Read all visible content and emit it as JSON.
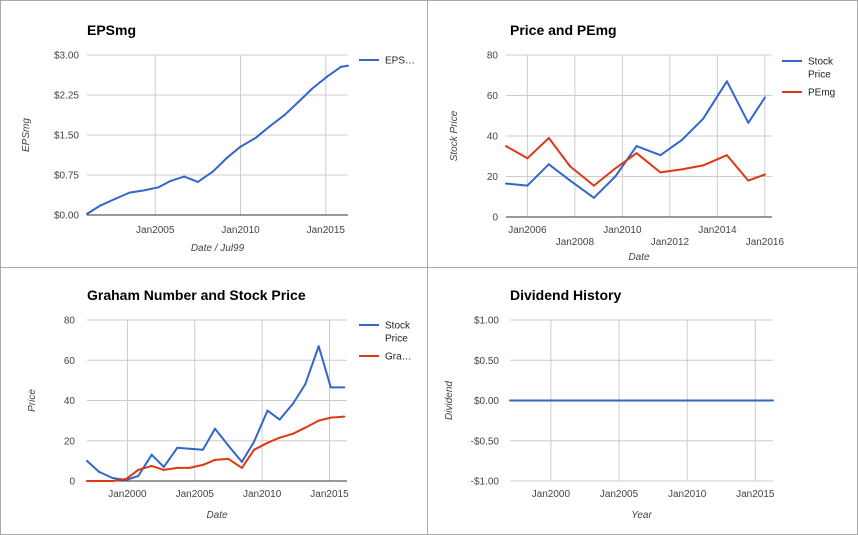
{
  "chart_data": [
    {
      "type": "line",
      "title": "EPSmg",
      "xlabel": "Date / Jul99",
      "ylabel": "EPSmg",
      "ylim": [
        0,
        3
      ],
      "xlim": [
        2001,
        2016.3
      ],
      "yticks": [
        "$0.00",
        "$0.75",
        "$1.50",
        "$2.25",
        "$3.00"
      ],
      "ytick_values": [
        0,
        0.75,
        1.5,
        2.25,
        3
      ],
      "xticks": [
        "Jan2005",
        "Jan2010",
        "Jan2015"
      ],
      "xtick_values": [
        2005,
        2010,
        2015
      ],
      "grid": true,
      "legend_position": "right",
      "series": [
        {
          "name": "EPS…",
          "color": "#3366cc",
          "x": [
            2001.0,
            2001.8,
            2002.7,
            2003.5,
            2004.3,
            2005.2,
            2005.9,
            2006.7,
            2007.5,
            2008.4,
            2009.2,
            2010.0,
            2010.9,
            2011.7,
            2012.6,
            2013.4,
            2014.2,
            2015.1,
            2015.9,
            2016.3
          ],
          "y": [
            0.02,
            0.18,
            0.31,
            0.42,
            0.46,
            0.52,
            0.64,
            0.72,
            0.62,
            0.82,
            1.07,
            1.28,
            1.45,
            1.66,
            1.88,
            2.12,
            2.37,
            2.6,
            2.78,
            2.8
          ]
        }
      ]
    },
    {
      "type": "line",
      "title": "Price and PEmg",
      "xlabel": "Date",
      "ylabel": "Stock Price",
      "ylim": [
        0,
        80
      ],
      "xlim": [
        2005.1,
        2016.3
      ],
      "yticks": [
        "0",
        "20",
        "40",
        "60",
        "80"
      ],
      "ytick_values": [
        0,
        20,
        40,
        60,
        80
      ],
      "xticks": [
        "Jan2006",
        "Jan2008",
        "Jan2010",
        "Jan2012",
        "Jan2014",
        "Jan2016"
      ],
      "xtick_values": [
        2006,
        2008,
        2010,
        2012,
        2014,
        2016
      ],
      "grid": true,
      "legend_position": "right",
      "series": [
        {
          "name": "Stock Price",
          "color": "#3366cc",
          "x": [
            2005.1,
            2006.0,
            2006.9,
            2007.8,
            2008.8,
            2009.7,
            2010.6,
            2011.6,
            2012.5,
            2013.4,
            2014.4,
            2015.3,
            2016.0
          ],
          "y": [
            16.5,
            15.5,
            26,
            18,
            9.5,
            20,
            35,
            30.5,
            38,
            48.5,
            67,
            46.5,
            59
          ]
        },
        {
          "name": "PEmg",
          "color": "#dc3912",
          "x": [
            2005.1,
            2006.0,
            2006.9,
            2007.8,
            2008.8,
            2009.7,
            2010.6,
            2011.6,
            2012.5,
            2013.4,
            2014.4,
            2015.3,
            2016.0
          ],
          "y": [
            35,
            29,
            39,
            25,
            15.5,
            24,
            31.5,
            22,
            23.5,
            25.5,
            30.5,
            18,
            21
          ]
        }
      ]
    },
    {
      "type": "line",
      "title": "Graham Number and Stock Price",
      "xlabel": "Date",
      "ylabel": "Price",
      "ylim": [
        0,
        80
      ],
      "xlim": [
        1997,
        2016.3
      ],
      "yticks": [
        "0",
        "20",
        "40",
        "60",
        "80"
      ],
      "ytick_values": [
        0,
        20,
        40,
        60,
        80
      ],
      "xticks": [
        "Jan2000",
        "Jan2005",
        "Jan2010",
        "Jan2015"
      ],
      "xtick_values": [
        2000,
        2005,
        2010,
        2015
      ],
      "grid": true,
      "legend_position": "right",
      "series": [
        {
          "name": "Stock Price",
          "color": "#3366cc",
          "x": [
            1997.0,
            1997.9,
            1998.9,
            1999.9,
            2000.8,
            2001.8,
            2002.7,
            2003.7,
            2004.6,
            2005.6,
            2006.5,
            2007.5,
            2008.5,
            2009.4,
            2010.4,
            2011.3,
            2012.3,
            2013.2,
            2014.2,
            2015.1,
            2016.1
          ],
          "y": [
            10,
            4.5,
            1.5,
            0.5,
            2.5,
            13,
            7,
            16.5,
            16,
            15.5,
            26,
            17.5,
            9.5,
            19.5,
            35,
            30.5,
            38.5,
            48,
            67,
            46.5,
            46.5
          ]
        },
        {
          "name": "Gra…",
          "color": "#dc3912",
          "x": [
            1997.0,
            1997.9,
            1998.9,
            1999.9,
            2000.8,
            2001.8,
            2002.7,
            2003.7,
            2004.6,
            2005.6,
            2006.5,
            2007.5,
            2008.5,
            2009.4,
            2010.4,
            2011.3,
            2012.3,
            2013.2,
            2014.2,
            2015.1,
            2016.1
          ],
          "y": [
            0,
            0,
            0,
            1,
            5.5,
            7.5,
            5.5,
            6.5,
            6.5,
            8,
            10.5,
            11,
            6.5,
            15.5,
            19,
            21.5,
            23.5,
            26.5,
            30,
            31.5,
            32
          ]
        }
      ]
    },
    {
      "type": "line",
      "title": "Dividend History",
      "xlabel": "Year",
      "ylabel": "Dividend",
      "ylim": [
        -1,
        1
      ],
      "xlim": [
        1997,
        2016.3
      ],
      "yticks": [
        "-$1.00",
        "-$0.50",
        "$0.00",
        "$0.50",
        "$1.00"
      ],
      "ytick_values": [
        -1,
        -0.5,
        0,
        0.5,
        1
      ],
      "xticks": [
        "Jan2000",
        "Jan2005",
        "Jan2010",
        "Jan2015"
      ],
      "xtick_values": [
        2000,
        2005,
        2010,
        2015
      ],
      "grid": true,
      "legend_position": "none",
      "series": [
        {
          "name": "",
          "color": "#3366cc",
          "x": [
            1997.0,
            2016.3
          ],
          "y": [
            0,
            0
          ]
        }
      ]
    }
  ]
}
